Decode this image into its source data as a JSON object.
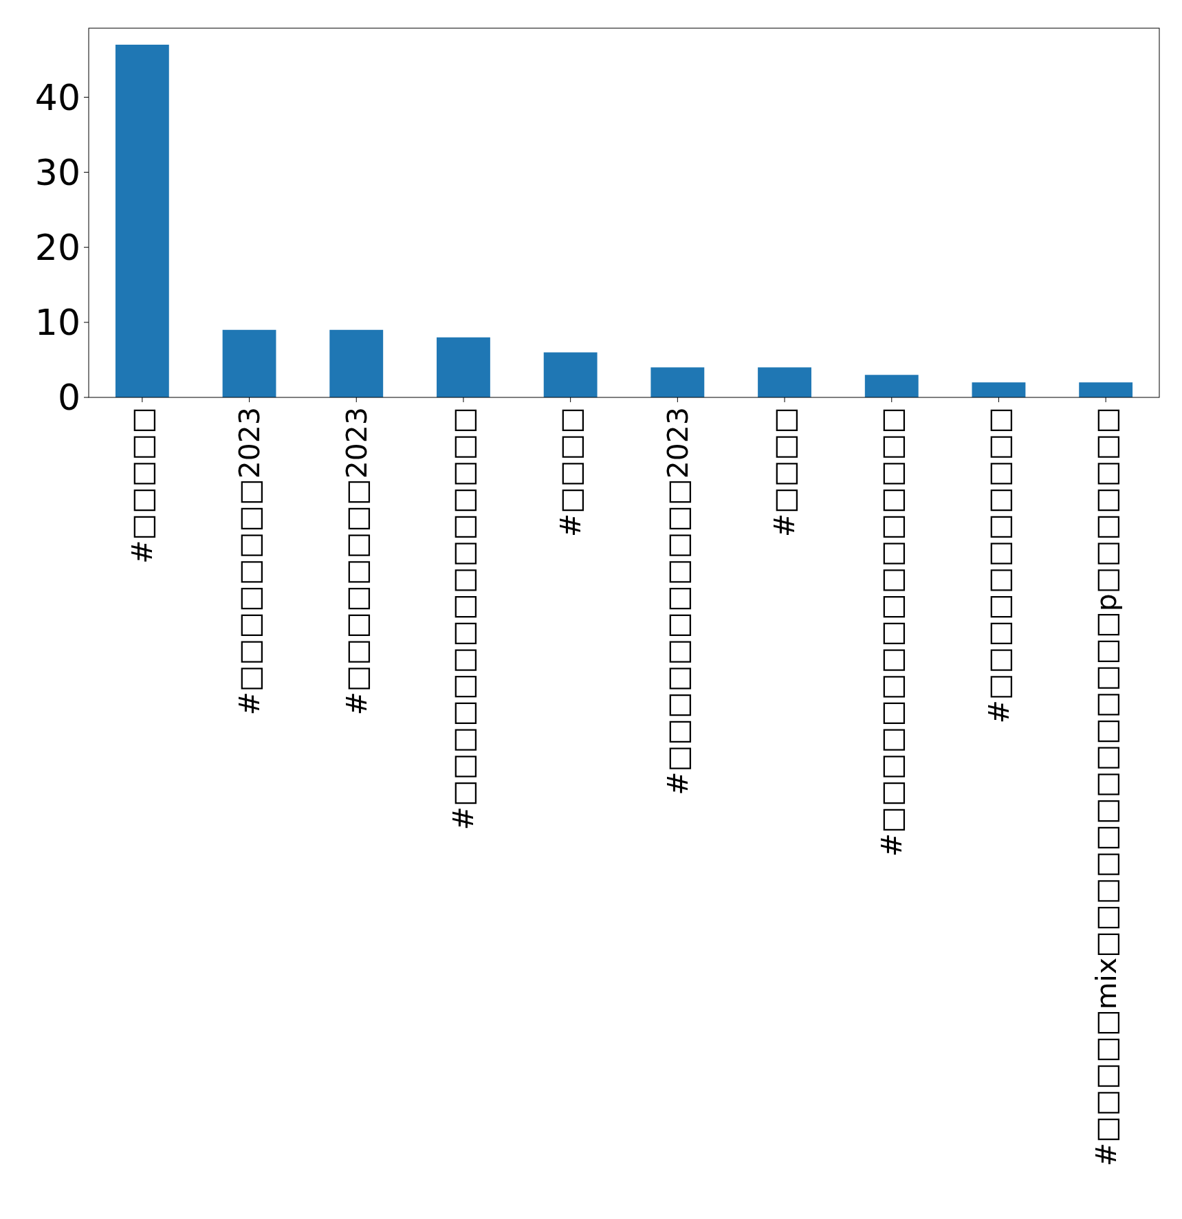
{
  "chart_data": {
    "type": "bar",
    "categories": [
      "#□□□□□",
      "#□□□□□□□□2023",
      "#□□□□□□□□2023",
      "#□□□□□□□□□□□□□□□",
      "#□□□□",
      "#□□□□□□□□□□□2023",
      "#□□□□",
      "#□□□□□□□□□□□□□□□□",
      "#□□□□□□□□□□□",
      "#□□□□□mix□□□□□□□□□□□□□p□□□□□□□"
    ],
    "values": [
      47,
      9,
      9,
      8,
      6,
      4,
      4,
      3,
      2,
      2
    ],
    "color": "#1f77b4",
    "ylim": [
      0,
      49.2
    ],
    "yticks": [
      0,
      10,
      20,
      30,
      40
    ],
    "grid": false
  }
}
